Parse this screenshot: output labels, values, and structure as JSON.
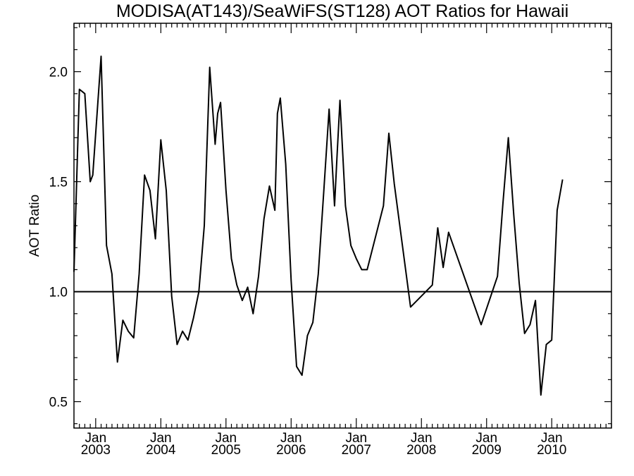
{
  "chart_data": {
    "type": "line",
    "title": "MODISA(AT143)/SeaWiFS(ST128)  AOT Ratios for Hawaii",
    "xlabel": "",
    "ylabel": "AOT Ratio",
    "ylim": [
      0.38,
      2.22
    ],
    "xlim": [
      "2002-09",
      "2010-12"
    ],
    "yticks": [
      0.5,
      1.0,
      1.5,
      2.0
    ],
    "ytick_labels": [
      "0.5",
      "1.0",
      "1.5",
      "2.0"
    ],
    "xticks": [
      {
        "month": "Jan",
        "year": "2003",
        "date": "2003-01"
      },
      {
        "month": "Jan",
        "year": "2004",
        "date": "2004-01"
      },
      {
        "month": "Jan",
        "year": "2005",
        "date": "2005-01"
      },
      {
        "month": "Jan",
        "year": "2006",
        "date": "2006-01"
      },
      {
        "month": "Jan",
        "year": "2007",
        "date": "2007-01"
      },
      {
        "month": "Jan",
        "year": "2008",
        "date": "2008-01"
      },
      {
        "month": "Jan",
        "year": "2009",
        "date": "2009-01"
      },
      {
        "month": "Jan",
        "year": "2010",
        "date": "2010-01"
      }
    ],
    "reference_line": 1.0,
    "grid": false,
    "series": [
      {
        "points": [
          [
            "2002-09",
            1.09
          ],
          [
            "2002-10",
            1.92
          ],
          [
            "2002-11",
            1.9
          ],
          [
            "2002-12",
            1.5
          ],
          [
            "2002-12-15",
            1.53
          ],
          [
            "2003-02",
            2.07
          ],
          [
            "2003-03",
            1.21
          ],
          [
            "2003-04",
            1.08
          ],
          [
            "2003-05",
            0.68
          ],
          [
            "2003-06",
            0.87
          ],
          [
            "2003-07",
            0.82
          ],
          [
            "2003-08",
            0.79
          ],
          [
            "2003-09",
            1.08
          ],
          [
            "2003-10",
            1.53
          ],
          [
            "2003-11",
            1.46
          ],
          [
            "2003-12",
            1.24
          ],
          [
            "2004-01",
            1.69
          ],
          [
            "2004-02",
            1.46
          ],
          [
            "2004-03",
            0.98
          ],
          [
            "2004-04",
            0.76
          ],
          [
            "2004-05",
            0.82
          ],
          [
            "2004-06",
            0.78
          ],
          [
            "2004-07",
            0.88
          ],
          [
            "2004-08",
            1.0
          ],
          [
            "2004-09",
            1.3
          ],
          [
            "2004-10",
            2.02
          ],
          [
            "2004-11",
            1.67
          ],
          [
            "2004-11-15",
            1.81
          ],
          [
            "2004-12",
            1.86
          ],
          [
            "2005-01",
            1.46
          ],
          [
            "2005-02",
            1.15
          ],
          [
            "2005-03",
            1.03
          ],
          [
            "2005-04",
            0.96
          ],
          [
            "2005-05",
            1.02
          ],
          [
            "2005-06",
            0.9
          ],
          [
            "2005-07",
            1.07
          ],
          [
            "2005-08",
            1.33
          ],
          [
            "2005-09",
            1.48
          ],
          [
            "2005-10",
            1.37
          ],
          [
            "2005-10-15",
            1.81
          ],
          [
            "2005-11",
            1.88
          ],
          [
            "2005-12",
            1.58
          ],
          [
            "2006-01",
            1.05
          ],
          [
            "2006-02",
            0.66
          ],
          [
            "2006-03",
            0.62
          ],
          [
            "2006-04",
            0.8
          ],
          [
            "2006-05",
            0.86
          ],
          [
            "2006-06",
            1.08
          ],
          [
            "2006-07",
            1.45
          ],
          [
            "2006-08",
            1.83
          ],
          [
            "2006-09",
            1.39
          ],
          [
            "2006-09-15",
            1.62
          ],
          [
            "2006-10",
            1.87
          ],
          [
            "2006-11",
            1.39
          ],
          [
            "2006-12",
            1.21
          ],
          [
            "2007-01",
            1.15
          ],
          [
            "2007-02",
            1.1
          ],
          [
            "2007-03",
            1.1
          ],
          [
            "2007-06",
            1.39
          ],
          [
            "2007-07",
            1.72
          ],
          [
            "2007-08",
            1.49
          ],
          [
            "2007-11",
            0.93
          ],
          [
            "2008-03",
            1.03
          ],
          [
            "2008-04",
            1.29
          ],
          [
            "2008-05",
            1.11
          ],
          [
            "2008-06",
            1.27
          ],
          [
            "2008-12",
            0.85
          ],
          [
            "2009-03",
            1.07
          ],
          [
            "2009-04",
            1.4
          ],
          [
            "2009-05",
            1.7
          ],
          [
            "2009-06",
            1.35
          ],
          [
            "2009-07",
            1.04
          ],
          [
            "2009-08",
            0.81
          ],
          [
            "2009-09",
            0.85
          ],
          [
            "2009-10",
            0.96
          ],
          [
            "2009-11",
            0.53
          ],
          [
            "2009-12",
            0.76
          ],
          [
            "2010-01",
            0.78
          ],
          [
            "2010-02",
            1.37
          ],
          [
            "2010-03",
            1.51
          ]
        ]
      }
    ]
  }
}
